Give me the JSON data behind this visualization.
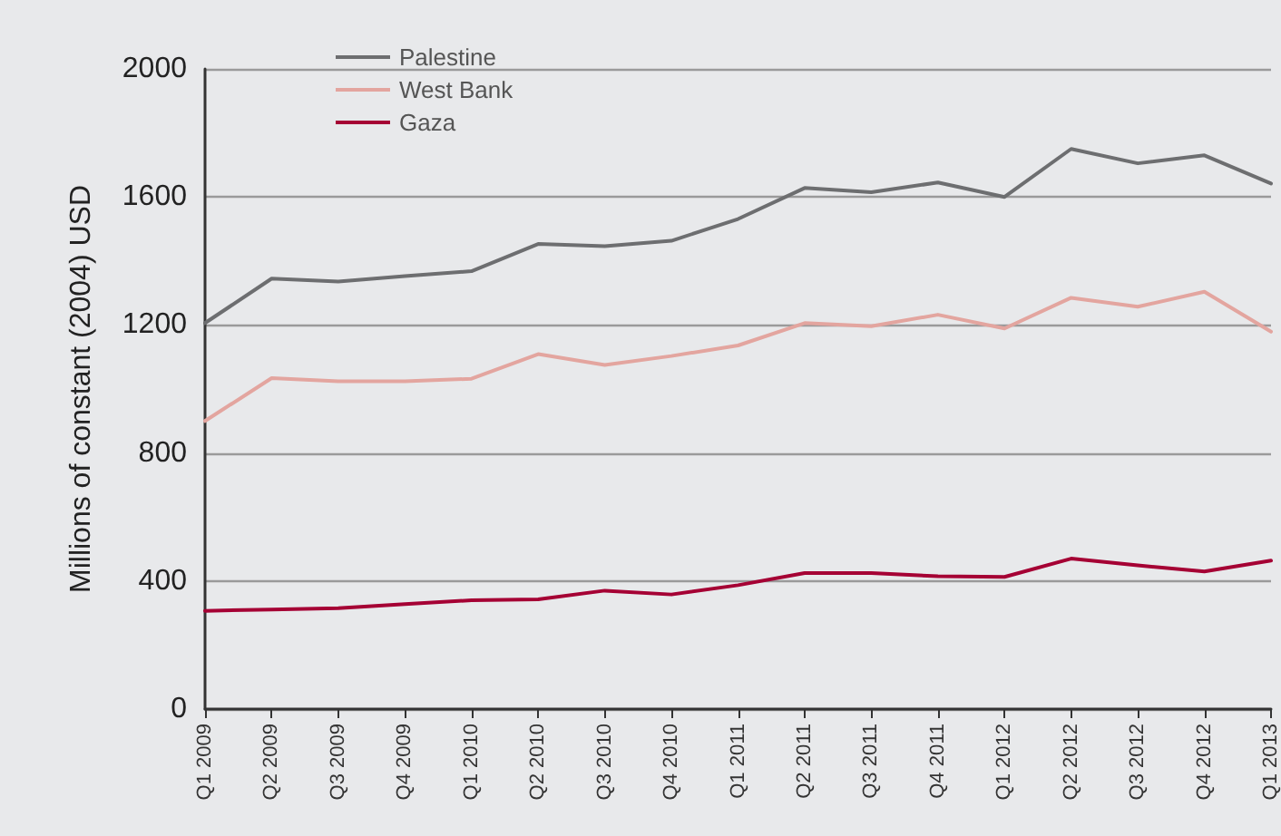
{
  "chart_data": {
    "type": "line",
    "ylabel": "Millions of constant (2004) USD",
    "categories": [
      "Q1 2009",
      "Q2 2009",
      "Q3 2009",
      "Q4 2009",
      "Q1 2010",
      "Q2 2010",
      "Q3 2010",
      "Q4 2010",
      "Q1 2011",
      "Q2 2011",
      "Q3 2011",
      "Q4 2011",
      "Q1 2012",
      "Q2 2012",
      "Q3 2012",
      "Q4 2012",
      "Q1 2013"
    ],
    "series": [
      {
        "name": "Palestine",
        "color": "#6d6e70",
        "values": [
          1206,
          1345,
          1336,
          1353,
          1368,
          1453,
          1446,
          1463,
          1531,
          1628,
          1615,
          1645,
          1600,
          1750,
          1705,
          1730,
          1642
        ]
      },
      {
        "name": "West Bank",
        "color": "#e3a59f",
        "values": [
          900,
          1034,
          1024,
          1024,
          1032,
          1109,
          1075,
          1103,
          1136,
          1206,
          1196,
          1232,
          1189,
          1285,
          1257,
          1304,
          1179
        ]
      },
      {
        "name": "Gaza",
        "color": "#a50034",
        "values": [
          307,
          311,
          315,
          328,
          340,
          343,
          370,
          358,
          387,
          425,
          425,
          415,
          413,
          470,
          449,
          430,
          464
        ]
      }
    ],
    "ylim": [
      0,
      2000
    ],
    "yticks": [
      0,
      400,
      800,
      1200,
      1600,
      2000
    ],
    "grid": "y",
    "legend": "top left",
    "marker": "none",
    "line_style": "solid"
  }
}
